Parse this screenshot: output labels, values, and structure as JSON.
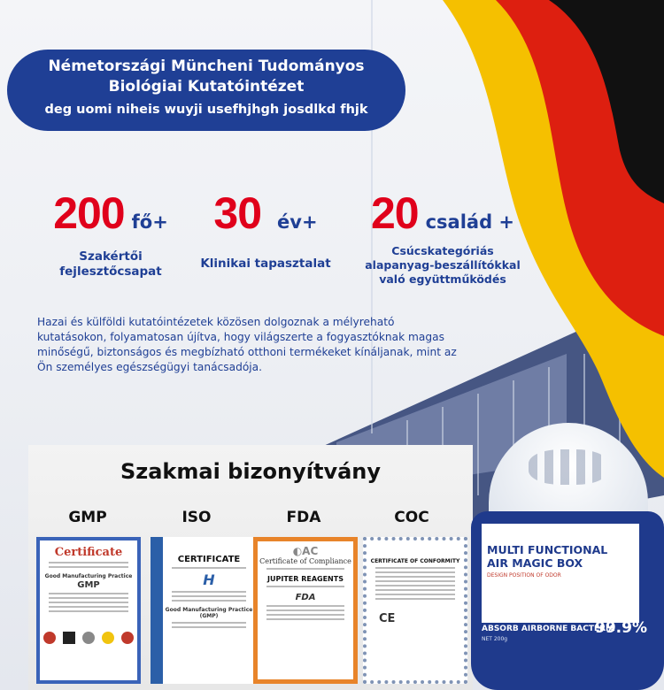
{
  "banner": {
    "title_line1": "Németországi Müncheni Tudományos",
    "title_line2": "Biológiai Kutatóintézet",
    "subtitle": "deg uomi niheis wuyji usefhjhgh josdlkd  fhjk"
  },
  "stats": [
    {
      "number": "200",
      "unit": "fő+",
      "label": "Szakértői fejlesztőcsapat"
    },
    {
      "number": "30",
      "unit": "év+",
      "label": "Klinikai tapasztalat"
    },
    {
      "number": "20",
      "unit": "család +",
      "label": "Csúcskategóriás alapanyag-beszállítókkal való együttműködés"
    }
  ],
  "description": "Hazai és külföldi kutatóintézetek közösen dolgoznak a mélyreható kutatásokon, folyamatosan újítva, hogy világszerte a fogyasztóknak magas minőségű, biztonságos és megbízható otthoni termékeket kínáljanak, mint az Ön személyes egészségügyi tanácsadója.",
  "certifications": {
    "title": "Szakmai bizonyítvány",
    "items": [
      {
        "label": "GMP",
        "heading": "Certificate",
        "subheading": "Good Manufacturing Practice",
        "code": "GMP"
      },
      {
        "label": "ISO",
        "heading": "CERTIFICATE",
        "subheading": "Good Manufacturing Practice (GMP)",
        "code": "ISO"
      },
      {
        "label": "FDA",
        "heading": "Certificate of Compliance",
        "subheading": "JUPITER REAGENTS",
        "code": "FDA"
      },
      {
        "label": "COC",
        "heading": "CERTIFICATE OF CONFORMITY",
        "subheading": "",
        "code": "CE"
      }
    ]
  },
  "product": {
    "name_line1": "MULTI FUNCTIONAL",
    "name_line2": "AIR MAGIC BOX",
    "tagline": "DESIGN POSITION OF ODOR",
    "claim": "ABSORB AIRBORNE BACTERIA",
    "net": "NET 200g",
    "percent": "99.9%"
  },
  "colors": {
    "brand_blue": "#1f3f95",
    "accent_red": "#e0001b",
    "flag_yellow": "#f5c000",
    "flag_red": "#dd1f10",
    "flag_black": "#111111"
  }
}
